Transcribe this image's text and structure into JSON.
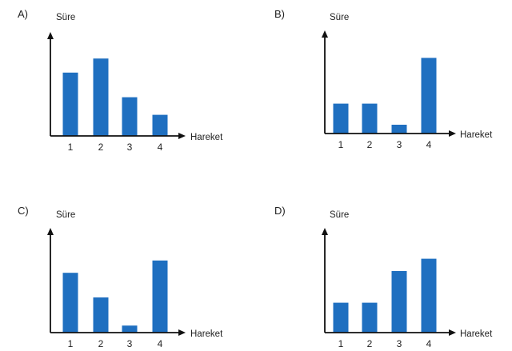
{
  "chart_data": [
    {
      "type": "bar",
      "option_label": "A)",
      "ylabel": "Süre",
      "xlabel": "Hareket",
      "categories": [
        "1",
        "2",
        "3",
        "4"
      ],
      "values": [
        3.6,
        4.4,
        2.2,
        1.2
      ],
      "ylim": [
        0,
        5.5
      ],
      "grid": false,
      "legend": "none",
      "bar_color": "#1f6fc0"
    },
    {
      "type": "bar",
      "option_label": "B)",
      "ylabel": "Süre",
      "xlabel": "Hareket",
      "categories": [
        "1",
        "2",
        "3",
        "4"
      ],
      "values": [
        1.7,
        1.7,
        0.5,
        4.3
      ],
      "ylim": [
        0,
        5.5
      ],
      "grid": false,
      "legend": "none",
      "bar_color": "#1f6fc0"
    },
    {
      "type": "bar",
      "option_label": "C)",
      "ylabel": "Süre",
      "xlabel": "Hareket",
      "categories": [
        "1",
        "2",
        "3",
        "4"
      ],
      "values": [
        3.4,
        2.0,
        0.4,
        4.1
      ],
      "ylim": [
        0,
        5.5
      ],
      "grid": false,
      "legend": "none",
      "bar_color": "#1f6fc0"
    },
    {
      "type": "bar",
      "option_label": "D)",
      "ylabel": "Süre",
      "xlabel": "Hareket",
      "categories": [
        "1",
        "2",
        "3",
        "4"
      ],
      "values": [
        1.7,
        1.7,
        3.5,
        4.2
      ],
      "ylim": [
        0,
        5.5
      ],
      "grid": false,
      "legend": "none",
      "bar_color": "#1f6fc0"
    }
  ],
  "colors": {
    "axis": "#111111",
    "text": "#222222"
  }
}
